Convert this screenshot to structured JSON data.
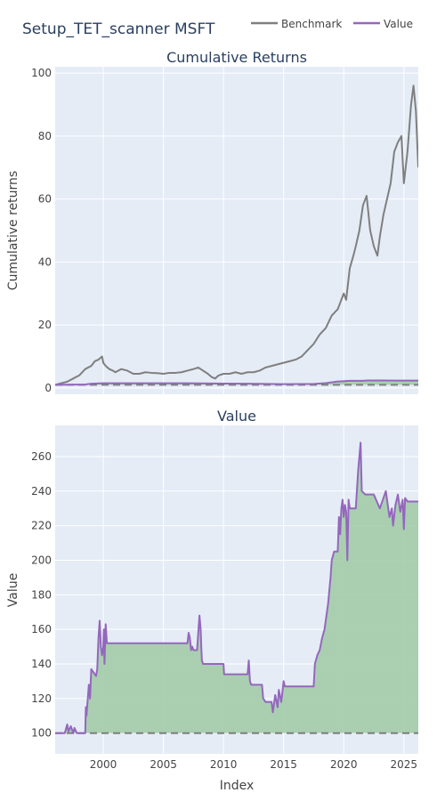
{
  "title": "Setup_TET_scanner MSFT",
  "legend": {
    "items": [
      {
        "name": "Benchmark",
        "color": "#7f7f7f"
      },
      {
        "name": "Value",
        "color": "#9467bd"
      }
    ]
  },
  "chart_data": [
    {
      "type": "line",
      "title": "Cumulative Returns",
      "ylabel": "Cumulative returns",
      "xlabel": "",
      "x_range": [
        1996.0,
        2026.2
      ],
      "ylim": [
        -2,
        102
      ],
      "yticks": [
        0,
        20,
        40,
        60,
        80,
        100
      ],
      "xticks": [
        2000,
        2005,
        2010,
        2015,
        2020,
        2025
      ],
      "grid": true,
      "baseline": 1,
      "series": [
        {
          "name": "Benchmark",
          "color": "#7f7f7f",
          "x": [
            1996.0,
            1996.5,
            1997.0,
            1997.5,
            1998.0,
            1998.5,
            1999.0,
            1999.3,
            1999.6,
            1999.9,
            2000.0,
            2000.2,
            2000.5,
            2000.8,
            2001.0,
            2001.5,
            2002.0,
            2002.5,
            2003.0,
            2003.5,
            2004.0,
            2004.5,
            2005.0,
            2005.5,
            2006.0,
            2006.5,
            2007.0,
            2007.5,
            2007.9,
            2008.3,
            2008.7,
            2009.0,
            2009.3,
            2009.6,
            2010.0,
            2010.5,
            2011.0,
            2011.5,
            2012.0,
            2012.5,
            2013.0,
            2013.5,
            2014.0,
            2014.5,
            2015.0,
            2015.5,
            2016.0,
            2016.5,
            2017.0,
            2017.5,
            2018.0,
            2018.5,
            2019.0,
            2019.5,
            2020.0,
            2020.2,
            2020.5,
            2020.8,
            2021.0,
            2021.3,
            2021.6,
            2021.9,
            2022.2,
            2022.5,
            2022.8,
            2023.0,
            2023.3,
            2023.6,
            2023.9,
            2024.2,
            2024.5,
            2024.8,
            2025.0,
            2025.3,
            2025.6,
            2025.8,
            2026.0,
            2026.2
          ],
          "y": [
            1.0,
            1.5,
            2.0,
            3.0,
            4.0,
            6.0,
            7.0,
            8.5,
            9.0,
            10.0,
            8.0,
            7.0,
            6.0,
            5.5,
            5.0,
            6.0,
            5.5,
            4.5,
            4.5,
            5.0,
            4.8,
            4.7,
            4.5,
            4.8,
            4.8,
            5.0,
            5.5,
            6.0,
            6.5,
            5.5,
            4.5,
            3.5,
            3.0,
            4.0,
            4.5,
            4.5,
            5.0,
            4.5,
            5.0,
            5.0,
            5.5,
            6.5,
            7.0,
            7.5,
            8.0,
            8.5,
            9.0,
            10.0,
            12.0,
            14.0,
            17.0,
            19.0,
            23.0,
            25.0,
            30.0,
            28.0,
            38.0,
            42.0,
            45.0,
            50.0,
            58.0,
            61.0,
            50.0,
            45.0,
            42.0,
            48.0,
            55.0,
            60.0,
            65.0,
            75.0,
            78.0,
            80.0,
            65.0,
            75.0,
            90.0,
            96.0,
            88.0,
            70.0
          ]
        },
        {
          "name": "Value",
          "color": "#9467bd",
          "x": [
            1996.0,
            1998.5,
            1999.0,
            2000.0,
            2007.0,
            2008.0,
            2010.0,
            2012.0,
            2013.5,
            2015.0,
            2017.5,
            2018.5,
            2019.5,
            2020.5,
            2021.5,
            2022.0,
            2023.0,
            2024.5,
            2025.5,
            2026.2
          ],
          "y": [
            1.0,
            1.1,
            1.35,
            1.51,
            1.51,
            1.48,
            1.4,
            1.34,
            1.27,
            1.2,
            1.27,
            1.55,
            2.05,
            2.28,
            2.29,
            2.39,
            2.38,
            2.34,
            2.34,
            2.34
          ]
        }
      ]
    },
    {
      "type": "area",
      "title": "Value",
      "ylabel": "Value",
      "xlabel": "Index",
      "x_range": [
        1996.0,
        2026.2
      ],
      "ylim": [
        88,
        278
      ],
      "yticks": [
        100,
        120,
        140,
        160,
        180,
        200,
        220,
        240,
        260
      ],
      "xticks": [
        2000,
        2005,
        2010,
        2015,
        2020,
        2025
      ],
      "xtick_labels": [
        "2000",
        "2005",
        "2010",
        "2015",
        "2020",
        "2025"
      ],
      "grid": true,
      "baseline": 100,
      "fill_color": "#a2cca9",
      "series": [
        {
          "name": "Value",
          "color": "#9467bd",
          "x": [
            1996.0,
            1996.8,
            1997.0,
            1997.1,
            1997.3,
            1997.5,
            1997.6,
            1997.8,
            1998.5,
            1998.55,
            1998.6,
            1998.8,
            1998.9,
            1999.0,
            1999.2,
            1999.4,
            1999.5,
            1999.6,
            1999.7,
            1999.8,
            1999.9,
            2000.0,
            2000.05,
            2000.1,
            2000.2,
            2000.3,
            2007.0,
            2007.1,
            2007.2,
            2007.3,
            2007.4,
            2007.5,
            2007.8,
            2008.0,
            2008.1,
            2008.15,
            2008.2,
            2008.3,
            2010.0,
            2010.05,
            2012.0,
            2012.1,
            2012.2,
            2012.3,
            2013.2,
            2013.3,
            2013.5,
            2014.0,
            2014.1,
            2014.3,
            2014.5,
            2014.6,
            2014.8,
            2015.0,
            2015.1,
            2015.3,
            2016.5,
            2017.5,
            2017.6,
            2017.8,
            2018.0,
            2018.2,
            2018.4,
            2018.5,
            2018.7,
            2018.9,
            2019.0,
            2019.2,
            2019.5,
            2019.6,
            2019.7,
            2019.8,
            2019.9,
            2020.0,
            2020.1,
            2020.2,
            2020.3,
            2020.4,
            2020.5,
            2020.8,
            2021.0,
            2021.2,
            2021.4,
            2021.5,
            2021.8,
            2021.9,
            2022.0,
            2022.1,
            2022.2,
            2022.5,
            2023.0,
            2023.5,
            2023.8,
            2024.0,
            2024.1,
            2024.3,
            2024.5,
            2024.7,
            2024.9,
            2025.0,
            2025.1,
            2025.3,
            2025.6,
            2026.2
          ],
          "y": [
            100,
            100,
            105,
            101,
            104,
            100,
            103,
            100,
            100,
            115,
            110,
            128,
            120,
            137,
            135,
            133,
            137,
            155,
            165,
            150,
            145,
            150,
            160,
            140,
            163,
            152,
            152,
            158,
            155,
            148,
            150,
            148,
            148,
            168,
            160,
            150,
            142,
            140,
            140,
            134,
            134,
            142,
            130,
            128,
            128,
            120,
            118,
            118,
            112,
            122,
            115,
            125,
            118,
            130,
            127,
            127,
            127,
            127,
            140,
            145,
            148,
            155,
            160,
            165,
            175,
            190,
            200,
            205,
            205,
            225,
            215,
            230,
            235,
            225,
            232,
            228,
            200,
            235,
            230,
            230,
            230,
            252,
            268,
            240,
            238,
            238,
            238,
            238,
            238,
            238,
            230,
            240,
            225,
            230,
            220,
            232,
            238,
            228,
            235,
            218,
            236,
            234,
            234,
            234
          ]
        }
      ]
    }
  ]
}
